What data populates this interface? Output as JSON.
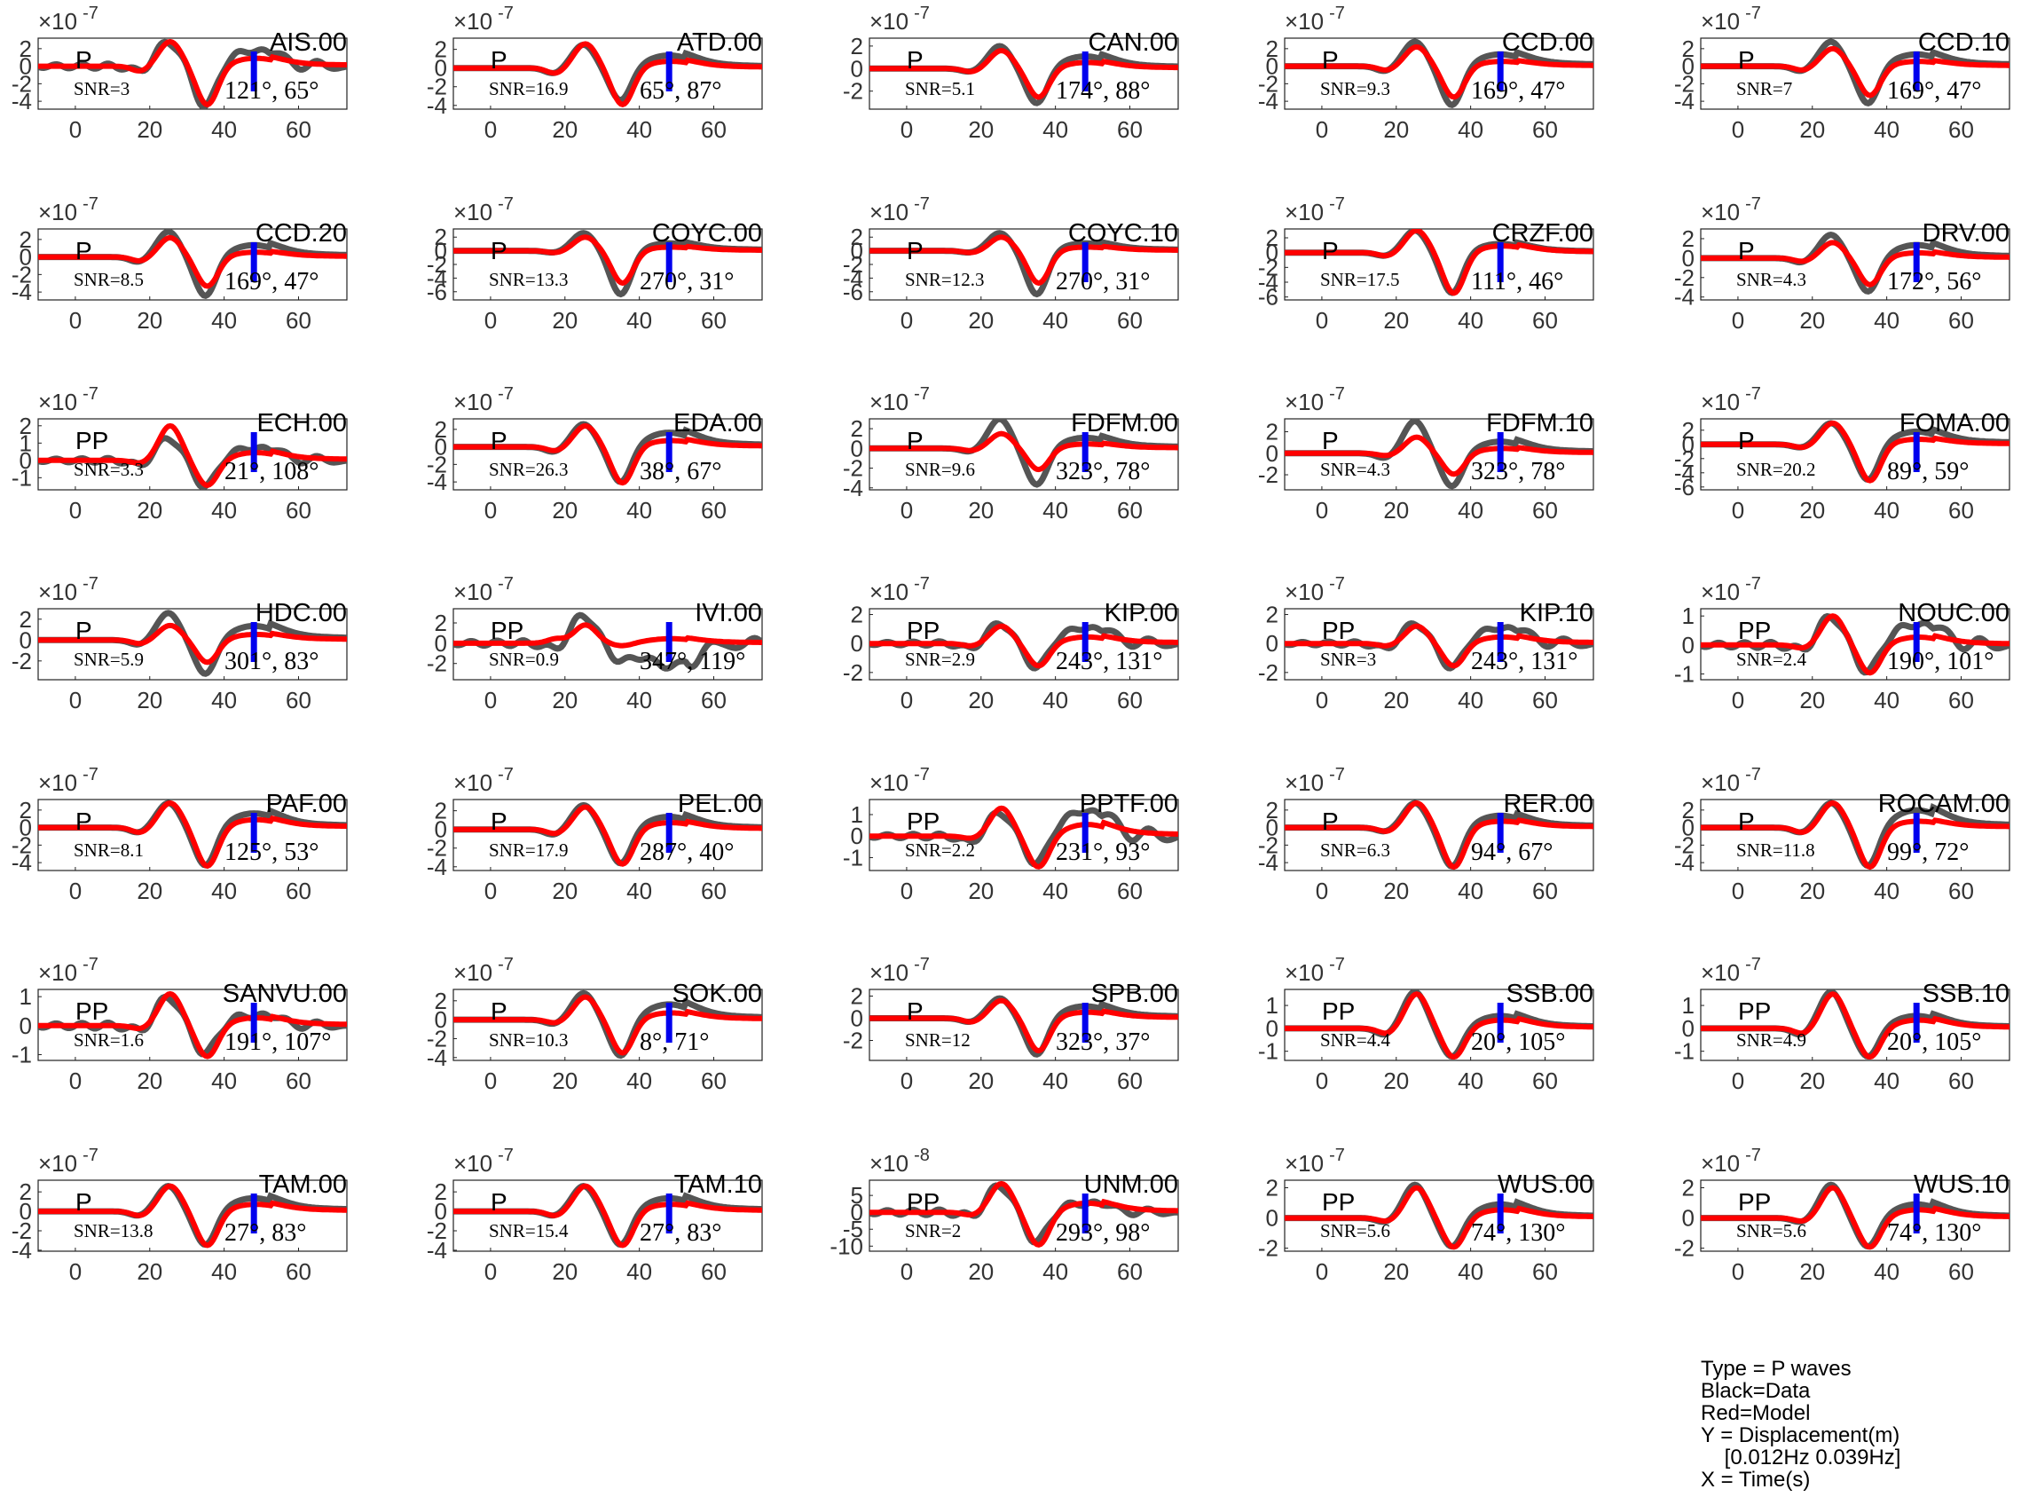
{
  "chart_data": {
    "type": "line",
    "xlim": [
      -10,
      73
    ],
    "xticks": [
      0,
      20,
      40,
      60
    ],
    "series_colors": {
      "data": "#555555",
      "model": "#ff0000",
      "marker": "#0000ee"
    },
    "panels": [
      {
        "station": "AIS.00",
        "phase": "P",
        "snr": "SNR=3",
        "angles": "121°, 65°",
        "exponent": "-7",
        "yticks": [
          2,
          0,
          -2,
          -4
        ],
        "ylim": [
          -4.9,
          3.2
        ],
        "model_amp": [
          1.0,
          2.8,
          -4.5,
          1.0
        ],
        "data_amp": [
          1.0,
          2.8,
          -4.8,
          2.0
        ]
      },
      {
        "station": "ATD.00",
        "phase": "P",
        "snr": "SNR=16.9",
        "angles": "65°, 87°",
        "exponent": "-7",
        "yticks": [
          2,
          0,
          -2,
          -4
        ],
        "ylim": [
          -4.4,
          3.2
        ],
        "model_amp": [
          1.0,
          2.6,
          -4.0,
          0.8
        ],
        "data_amp": [
          1.0,
          2.5,
          -3.6,
          1.5
        ]
      },
      {
        "station": "CAN.00",
        "phase": "P",
        "snr": "SNR=5.1",
        "angles": "174°, 88°",
        "exponent": "-7",
        "yticks": [
          2,
          0,
          -2
        ],
        "ylim": [
          -3.6,
          2.7
        ],
        "model_amp": [
          0.5,
          1.6,
          -2.6,
          0.6
        ],
        "data_amp": [
          0.5,
          2.0,
          -3.2,
          1.2
        ]
      },
      {
        "station": "CCD.00",
        "phase": "P",
        "snr": "SNR=9.3",
        "angles": "169°, 47°",
        "exponent": "-7",
        "yticks": [
          2,
          0,
          -2,
          -4
        ],
        "ylim": [
          -4.9,
          3.2
        ],
        "model_amp": [
          0.8,
          2.2,
          -3.6,
          0.6
        ],
        "data_amp": [
          1.0,
          2.8,
          -4.6,
          1.5
        ]
      },
      {
        "station": "CCD.10",
        "phase": "P",
        "snr": "SNR=7",
        "angles": "169°, 47°",
        "exponent": "-7",
        "yticks": [
          2,
          0,
          -2,
          -4
        ],
        "ylim": [
          -4.9,
          3.2
        ],
        "model_amp": [
          0.8,
          2.0,
          -3.4,
          0.6
        ],
        "data_amp": [
          1.0,
          2.8,
          -4.4,
          1.5
        ]
      },
      {
        "station": "CCD.20",
        "phase": "P",
        "snr": "SNR=8.5",
        "angles": "169°, 47°",
        "exponent": "-7",
        "yticks": [
          2,
          0,
          -2,
          -4
        ],
        "ylim": [
          -4.9,
          3.2
        ],
        "model_amp": [
          0.8,
          2.2,
          -3.4,
          0.6
        ],
        "data_amp": [
          1.0,
          2.9,
          -4.6,
          1.5
        ]
      },
      {
        "station": "COYC.00",
        "phase": "P",
        "snr": "SNR=13.3",
        "angles": "270°, 31°",
        "exponent": "-7",
        "yticks": [
          2,
          0,
          -2,
          -4,
          -6
        ],
        "ylim": [
          -7.2,
          3.2
        ],
        "model_amp": [
          0.5,
          2.0,
          -4.8,
          0.6
        ],
        "data_amp": [
          0.5,
          2.6,
          -6.5,
          1.2
        ]
      },
      {
        "station": "COYC.10",
        "phase": "P",
        "snr": "SNR=12.3",
        "angles": "270°, 31°",
        "exponent": "-7",
        "yticks": [
          2,
          0,
          -2,
          -4,
          -6
        ],
        "ylim": [
          -7.2,
          3.2
        ],
        "model_amp": [
          0.5,
          2.0,
          -4.8,
          0.6
        ],
        "data_amp": [
          0.5,
          2.6,
          -6.5,
          1.2
        ]
      },
      {
        "station": "CRZF.00",
        "phase": "P",
        "snr": "SNR=17.5",
        "angles": "111°, 46°",
        "exponent": "-7",
        "yticks": [
          2,
          0,
          -2,
          -4,
          -6
        ],
        "ylim": [
          -6.4,
          3.2
        ],
        "model_amp": [
          0.8,
          3.0,
          -5.6,
          1.0
        ],
        "data_amp": [
          0.8,
          3.0,
          -5.6,
          1.3
        ]
      },
      {
        "station": "DRV.00",
        "phase": "P",
        "snr": "SNR=4.3",
        "angles": "172°, 56°",
        "exponent": "-7",
        "yticks": [
          2,
          0,
          -2,
          -4
        ],
        "ylim": [
          -4.3,
          3.0
        ],
        "model_amp": [
          0.6,
          1.6,
          -2.8,
          0.6
        ],
        "data_amp": [
          0.8,
          2.4,
          -3.6,
          1.5
        ]
      },
      {
        "station": "ECH.00",
        "phase": "PP",
        "snr": "SNR=3.3",
        "angles": "21°, 108°",
        "exponent": "-7",
        "yticks": [
          2,
          1,
          0,
          -1
        ],
        "ylim": [
          -1.7,
          2.4
        ],
        "model_amp": [
          0.3,
          2.0,
          -1.5,
          0.5
        ],
        "data_amp": [
          0.5,
          1.3,
          -1.6,
          0.8
        ]
      },
      {
        "station": "EDA.00",
        "phase": "P",
        "snr": "SNR=26.3",
        "angles": "38°, 67°",
        "exponent": "-7",
        "yticks": [
          2,
          0,
          -2,
          -4
        ],
        "ylim": [
          -4.9,
          3.2
        ],
        "model_amp": [
          0.8,
          2.4,
          -4.2,
          0.8
        ],
        "data_amp": [
          1.0,
          2.6,
          -4.2,
          1.8
        ]
      },
      {
        "station": "FDFM.00",
        "phase": "P",
        "snr": "SNR=9.6",
        "angles": "323°, 78°",
        "exponent": "-7",
        "yticks": [
          2,
          0,
          -2,
          -4
        ],
        "ylim": [
          -4.2,
          3.0
        ],
        "model_amp": [
          0.4,
          1.5,
          -2.2,
          0.5
        ],
        "data_amp": [
          0.6,
          3.0,
          -3.8,
          1.2
        ]
      },
      {
        "station": "FDFM.10",
        "phase": "P",
        "snr": "SNR=4.3",
        "angles": "323°, 78°",
        "exponent": "-7",
        "yticks": [
          2,
          0,
          -2
        ],
        "ylim": [
          -3.4,
          3.2
        ],
        "model_amp": [
          0.4,
          1.5,
          -2.0,
          0.5
        ],
        "data_amp": [
          0.8,
          3.0,
          -3.2,
          1.2
        ]
      },
      {
        "station": "FOMA.00",
        "phase": "P",
        "snr": "SNR=20.2",
        "angles": "89°, 59°",
        "exponent": "-7",
        "yticks": [
          2,
          0,
          -2,
          -4,
          -6
        ],
        "ylim": [
          -6.4,
          3.6
        ],
        "model_amp": [
          0.8,
          3.0,
          -5.2,
          0.8
        ],
        "data_amp": [
          0.8,
          3.0,
          -5.2,
          2.0
        ]
      },
      {
        "station": "HDC.00",
        "phase": "P",
        "snr": "SNR=5.9",
        "angles": "301°, 83°",
        "exponent": "-7",
        "yticks": [
          2,
          0,
          -2
        ],
        "ylim": [
          -3.8,
          3.0
        ],
        "model_amp": [
          0.6,
          1.4,
          -2.2,
          0.6
        ],
        "data_amp": [
          0.8,
          2.6,
          -3.4,
          1.5
        ]
      },
      {
        "station": "IVI.00",
        "phase": "PP",
        "snr": "SNR=0.9",
        "angles": "347°, 119°",
        "exponent": "-7",
        "yticks": [
          2,
          0,
          -2
        ],
        "ylim": [
          -3.6,
          3.4
        ],
        "model_amp": [
          -0.7,
          1.8,
          -0.3,
          0.5
        ],
        "data_amp": [
          1.0,
          2.8,
          -1.5,
          -2.5
        ]
      },
      {
        "station": "KIP.00",
        "phase": "PP",
        "snr": "SNR=2.9",
        "angles": "243°, 131°",
        "exponent": "-7",
        "yticks": [
          2,
          0,
          -2
        ],
        "ylim": [
          -2.5,
          2.4
        ],
        "model_amp": [
          0.3,
          1.2,
          -1.6,
          0.5
        ],
        "data_amp": [
          0.6,
          1.4,
          -1.8,
          1.2
        ]
      },
      {
        "station": "KIP.10",
        "phase": "PP",
        "snr": "SNR=3",
        "angles": "243°, 131°",
        "exponent": "-7",
        "yticks": [
          2,
          0,
          -2
        ],
        "ylim": [
          -2.5,
          2.4
        ],
        "model_amp": [
          0.3,
          1.2,
          -1.6,
          0.5
        ],
        "data_amp": [
          0.6,
          1.4,
          -1.8,
          1.2
        ]
      },
      {
        "station": "NOUC.00",
        "phase": "PP",
        "snr": "SNR=2.4",
        "angles": "190°, 101°",
        "exponent": "-7",
        "yticks": [
          1,
          0,
          -1
        ],
        "ylim": [
          -1.2,
          1.25
        ],
        "model_amp": [
          0.2,
          1.0,
          -1.0,
          0.3
        ],
        "data_amp": [
          0.3,
          1.0,
          -1.0,
          0.8
        ]
      },
      {
        "station": "PAF.00",
        "phase": "P",
        "snr": "SNR=8.1",
        "angles": "125°, 53°",
        "exponent": "-7",
        "yticks": [
          2,
          0,
          -2,
          -4
        ],
        "ylim": [
          -4.9,
          3.2
        ],
        "model_amp": [
          1.0,
          2.8,
          -4.5,
          1.0
        ],
        "data_amp": [
          1.0,
          2.8,
          -4.5,
          1.8
        ]
      },
      {
        "station": "PEL.00",
        "phase": "P",
        "snr": "SNR=17.9",
        "angles": "287°, 40°",
        "exponent": "-7",
        "yticks": [
          2,
          0,
          -2,
          -4
        ],
        "ylim": [
          -4.4,
          3.2
        ],
        "model_amp": [
          0.8,
          2.4,
          -3.8,
          0.8
        ],
        "data_amp": [
          1.0,
          2.6,
          -3.8,
          1.5
        ]
      },
      {
        "station": "PPTF.00",
        "phase": "PP",
        "snr": "SNR=2.2",
        "angles": "231°, 93°",
        "exponent": "-7",
        "yticks": [
          1,
          0,
          -1
        ],
        "ylim": [
          -1.6,
          1.7
        ],
        "model_amp": [
          0.2,
          1.3,
          -1.5,
          0.6
        ],
        "data_amp": [
          0.5,
          1.1,
          -1.4,
          1.3
        ]
      },
      {
        "station": "RER.00",
        "phase": "P",
        "snr": "SNR=6.3",
        "angles": "94°, 67°",
        "exponent": "-7",
        "yticks": [
          2,
          0,
          -2,
          -4
        ],
        "ylim": [
          -4.9,
          3.2
        ],
        "model_amp": [
          0.8,
          2.8,
          -4.6,
          0.8
        ],
        "data_amp": [
          0.8,
          2.8,
          -4.6,
          1.5
        ]
      },
      {
        "station": "ROCAM.00",
        "phase": "P",
        "snr": "SNR=11.8",
        "angles": "99°, 72°",
        "exponent": "-7",
        "yticks": [
          2,
          0,
          -2,
          -4
        ],
        "ylim": [
          -4.9,
          3.2
        ],
        "model_amp": [
          1.0,
          2.8,
          -4.6,
          0.8
        ],
        "data_amp": [
          1.0,
          2.8,
          -4.6,
          2.2
        ]
      },
      {
        "station": "SANVU.00",
        "phase": "PP",
        "snr": "SNR=1.6",
        "angles": "191°, 107°",
        "exponent": "-7",
        "yticks": [
          1,
          0,
          -1
        ],
        "ylim": [
          -1.2,
          1.25
        ],
        "model_amp": [
          0.2,
          1.1,
          -1.1,
          0.3
        ],
        "data_amp": [
          0.3,
          1.0,
          -1.0,
          0.4
        ]
      },
      {
        "station": "SOK.00",
        "phase": "P",
        "snr": "SNR=10.3",
        "angles": "8°, 71°",
        "exponent": "-7",
        "yticks": [
          2,
          0,
          -2,
          -4
        ],
        "ylim": [
          -4.3,
          3.2
        ],
        "model_amp": [
          0.6,
          2.4,
          -3.6,
          0.8
        ],
        "data_amp": [
          0.8,
          2.8,
          -4.0,
          1.8
        ]
      },
      {
        "station": "SPB.00",
        "phase": "P",
        "snr": "SNR=12",
        "angles": "323°, 37°",
        "exponent": "-7",
        "yticks": [
          2,
          0,
          -2
        ],
        "ylim": [
          -3.8,
          2.6
        ],
        "model_amp": [
          0.6,
          1.6,
          -3.0,
          0.6
        ],
        "data_amp": [
          0.6,
          1.8,
          -3.4,
          1.2
        ]
      },
      {
        "station": "SSB.00",
        "phase": "PP",
        "snr": "SNR=4.4",
        "angles": "20°, 105°",
        "exponent": "-7",
        "yticks": [
          1,
          0,
          -1
        ],
        "ylim": [
          -1.4,
          1.7
        ],
        "model_amp": [
          0.4,
          1.5,
          -1.3,
          0.4
        ],
        "data_amp": [
          0.5,
          1.6,
          -1.3,
          0.6
        ]
      },
      {
        "station": "SSB.10",
        "phase": "PP",
        "snr": "SNR=4.9",
        "angles": "20°, 105°",
        "exponent": "-7",
        "yticks": [
          1,
          0,
          -1
        ],
        "ylim": [
          -1.4,
          1.7
        ],
        "model_amp": [
          0.4,
          1.5,
          -1.3,
          0.4
        ],
        "data_amp": [
          0.5,
          1.6,
          -1.3,
          0.6
        ]
      },
      {
        "station": "TAM.00",
        "phase": "P",
        "snr": "SNR=13.8",
        "angles": "27°, 83°",
        "exponent": "-7",
        "yticks": [
          2,
          0,
          -2,
          -4
        ],
        "ylim": [
          -4.1,
          3.2
        ],
        "model_amp": [
          0.8,
          2.6,
          -3.6,
          0.8
        ],
        "data_amp": [
          0.8,
          2.6,
          -3.6,
          1.5
        ]
      },
      {
        "station": "TAM.10",
        "phase": "P",
        "snr": "SNR=15.4",
        "angles": "27°, 83°",
        "exponent": "-7",
        "yticks": [
          2,
          0,
          -2,
          -4
        ],
        "ylim": [
          -4.1,
          3.2
        ],
        "model_amp": [
          0.8,
          2.6,
          -3.6,
          0.8
        ],
        "data_amp": [
          0.8,
          2.6,
          -3.6,
          1.5
        ]
      },
      {
        "station": "UNM.00",
        "phase": "PP",
        "snr": "SNR=2",
        "angles": "293°, 98°",
        "exponent": "-8",
        "yticks": [
          5,
          0,
          -5,
          -10
        ],
        "ylim": [
          -11.5,
          9.5
        ],
        "model_amp": [
          1.5,
          8.5,
          -10.0,
          3.0
        ],
        "data_amp": [
          2.0,
          8.0,
          -9.0,
          3.0
        ]
      },
      {
        "station": "WUS.00",
        "phase": "PP",
        "snr": "SNR=5.6",
        "angles": "74°, 130°",
        "exponent": "-7",
        "yticks": [
          2,
          0,
          -2
        ],
        "ylim": [
          -2.2,
          2.5
        ],
        "model_amp": [
          0.4,
          2.0,
          -2.0,
          0.6
        ],
        "data_amp": [
          0.5,
          2.2,
          -2.0,
          1.0
        ]
      },
      {
        "station": "WUS.10",
        "phase": "PP",
        "snr": "SNR=5.6",
        "angles": "74°, 130°",
        "exponent": "-7",
        "yticks": [
          2,
          0,
          -2
        ],
        "ylim": [
          -2.2,
          2.5
        ],
        "model_amp": [
          0.4,
          2.0,
          -2.0,
          0.6
        ],
        "data_amp": [
          0.5,
          2.2,
          -2.0,
          1.0
        ]
      }
    ]
  },
  "legend": {
    "lines": [
      "Type = P waves",
      "Black=Data",
      "Red=Model",
      "Y = Displacement(m)",
      "    [0.012Hz 0.039Hz]",
      "X = Time(s)"
    ]
  }
}
